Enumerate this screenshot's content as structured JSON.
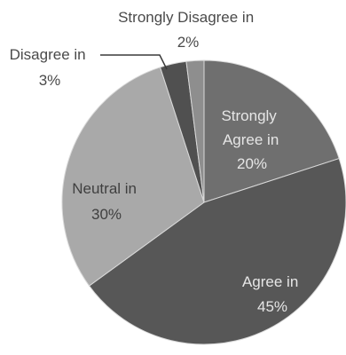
{
  "chart_data": {
    "type": "pie",
    "start_angle_deg": 90,
    "direction": "clockwise",
    "slices": [
      {
        "name": "Strongly Agree",
        "value": 20,
        "label_lines": [
          "Strongly",
          "Agree in",
          "20%"
        ],
        "color": "#6f6f6f",
        "label_color": "#e6e6e6"
      },
      {
        "name": "Agree",
        "value": 45,
        "label_lines": [
          "Agree in",
          "45%"
        ],
        "color": "#575757",
        "label_color": "#e6e6e6"
      },
      {
        "name": "Neutral",
        "value": 30,
        "label_lines": [
          "Neutral in",
          "30%"
        ],
        "color": "#a9a9a9",
        "label_color": "#3f3f3f"
      },
      {
        "name": "Disagree",
        "value": 3,
        "label_lines": [
          "Disagree in",
          "3%"
        ],
        "color": "#505050",
        "label_color": "#4a4a4a"
      },
      {
        "name": "Strongly Disagree",
        "value": 2,
        "label_lines": [
          "Strongly Disagree in",
          "2%"
        ],
        "color": "#8e8e8e",
        "label_color": "#4a4a4a"
      }
    ]
  }
}
